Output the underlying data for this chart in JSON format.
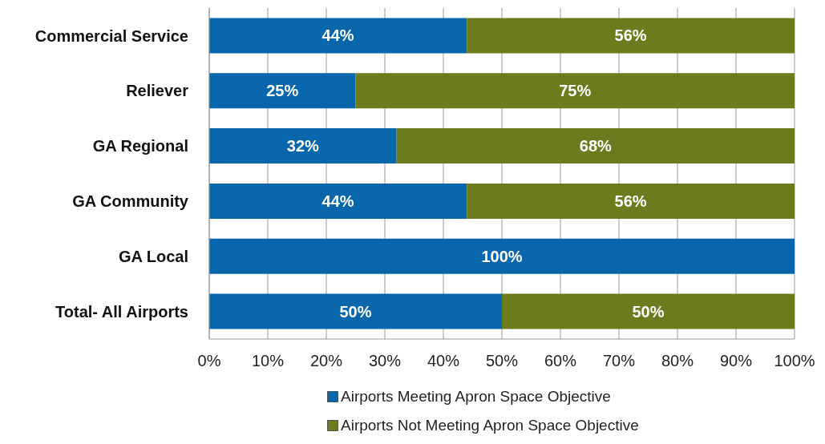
{
  "chart_data": {
    "type": "bar",
    "orientation": "horizontal",
    "stacked": true,
    "categories": [
      "Commercial Service",
      "Reliever",
      "GA Regional",
      "GA Community",
      "GA Local",
      "Total- All Airports"
    ],
    "series": [
      {
        "name": "Airports Meeting Apron Space Objective",
        "color": "#0866ac",
        "values": [
          44,
          25,
          32,
          44,
          100,
          50
        ],
        "value_labels": [
          "44%",
          "25%",
          "32%",
          "44%",
          "100%",
          "50%"
        ]
      },
      {
        "name": "Airports Not Meeting Apron Space Objective",
        "color": "#6b7b1e",
        "values": [
          56,
          75,
          68,
          56,
          0,
          50
        ],
        "value_labels": [
          "56%",
          "75%",
          "68%",
          "56%",
          null,
          "50%"
        ]
      }
    ],
    "xlim": [
      0,
      100
    ],
    "xticks": [
      {
        "value": 0,
        "label": "0%"
      },
      {
        "value": 10,
        "label": "10%"
      },
      {
        "value": 20,
        "label": "20%"
      },
      {
        "value": 30,
        "label": "30%"
      },
      {
        "value": 40,
        "label": "40%"
      },
      {
        "value": 50,
        "label": "50%"
      },
      {
        "value": 60,
        "label": "60%"
      },
      {
        "value": 70,
        "label": "70%"
      },
      {
        "value": 80,
        "label": "80%"
      },
      {
        "value": 90,
        "label": "90%"
      },
      {
        "value": 100,
        "label": "100%"
      }
    ],
    "grid": "x",
    "legend": "bottom"
  }
}
